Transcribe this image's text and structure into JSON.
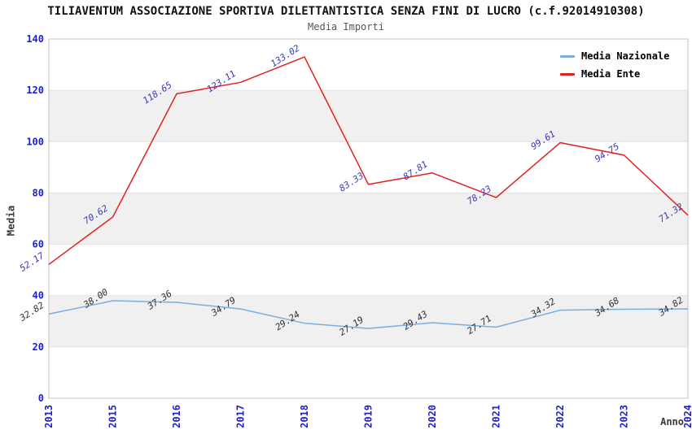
{
  "header": {
    "title": "TILIAVENTUM ASSOCIAZIONE SPORTIVA DILETTANTISTICA SENZA FINI DI LUCRO (c.f.92014910308)",
    "subtitle": "Media Importi"
  },
  "chart_data": {
    "type": "line",
    "title": "Media Importi",
    "xlabel": "Anno",
    "ylabel": "Media",
    "categories": [
      "2013",
      "2015",
      "2016",
      "2017",
      "2018",
      "2019",
      "2020",
      "2021",
      "2022",
      "2023",
      "2024"
    ],
    "series": [
      {
        "name": "Media Nazionale",
        "color": "#7aade0",
        "label_color": "#2f2f2f",
        "values": [
          32.82,
          38.0,
          37.36,
          34.79,
          29.24,
          27.19,
          29.43,
          27.71,
          34.32,
          34.68,
          34.82
        ]
      },
      {
        "name": "Media Ente",
        "color": "#e32020",
        "label_color": "#3939bb",
        "values": [
          52.17,
          70.62,
          118.65,
          123.11,
          133.02,
          83.33,
          87.81,
          78.23,
          99.61,
          94.75,
          71.32
        ]
      }
    ],
    "ylim": [
      0,
      140
    ],
    "ytick_step": 20,
    "grid": true,
    "legend_position": "top-right",
    "band_color": "#f0f0f0",
    "gridline_color": "#e2e2e2",
    "border_color": "#c4c4c4",
    "tick_label_color": "#2020cc"
  }
}
